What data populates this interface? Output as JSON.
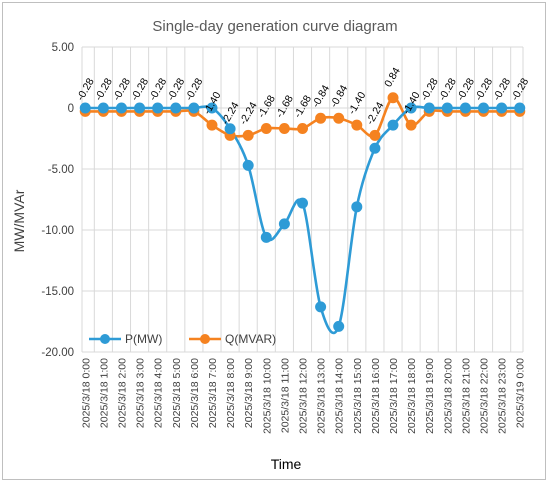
{
  "chart_data": {
    "type": "line",
    "title": "Single-day generation curve diagram",
    "xlabel": "Time",
    "ylabel": "MW/MVAr",
    "ylim": [
      -20,
      5
    ],
    "yticks": [
      "5.00",
      "0",
      "-5.00",
      "-10.00",
      "-15.00",
      "-20.00"
    ],
    "ytick_values": [
      5,
      0,
      -5,
      -10,
      -15,
      -20
    ],
    "grid": true,
    "legend_position": "bottom-left",
    "categories": [
      "2025/3/18 0:00",
      "2025/3/18 1:00",
      "2025/3/18 2:00",
      "2025/3/18 3:00",
      "2025/3/18 4:00",
      "2025/3/18 5:00",
      "2025/3/18 6:00",
      "2025/3/18 7:00",
      "2025/3/18 8:00",
      "2025/3/18 9:00",
      "2025/3/18 10:00",
      "2025/3/18 11:00",
      "2025/3/18 12:00",
      "2025/3/18 13:00",
      "2025/3/18 14:00",
      "2025/3/18 15:00",
      "2025/3/18 16:00",
      "2025/3/18 17:00",
      "2025/3/18 18:00",
      "2025/3/18 19:00",
      "2025/3/18 20:00",
      "2025/3/18 21:00",
      "2025/3/18 22:00",
      "2025/3/18 23:00",
      "2025/3/19 0:00"
    ],
    "series": [
      {
        "name": "P(MW)",
        "color": "#2E9BD6",
        "values": [
          0,
          0,
          0,
          0,
          0,
          0,
          0,
          0,
          -1.7,
          -4.7,
          -10.6,
          -9.5,
          -7.8,
          -16.3,
          -17.9,
          -8.1,
          -3.3,
          -1.4,
          0,
          0,
          0,
          0,
          0,
          0,
          0
        ]
      },
      {
        "name": "Q(MVAR)",
        "color": "#F58220",
        "values": [
          -0.28,
          -0.28,
          -0.28,
          -0.28,
          -0.28,
          -0.28,
          -0.28,
          -1.4,
          -2.24,
          -2.24,
          -1.68,
          -1.68,
          -1.68,
          -0.84,
          -0.84,
          -1.4,
          -2.24,
          0.84,
          -1.4,
          -0.28,
          -0.28,
          -0.28,
          -0.28,
          -0.28,
          -0.28
        ],
        "labels": [
          "-0.28",
          "-0.28",
          "-0.28",
          "-0.28",
          "-0.28",
          "-0.28",
          "-0.28",
          "-1.40",
          "-2.24",
          "-2.24",
          "-1.68",
          "-1.68",
          "-1.68",
          "-0.84",
          "-0.84",
          "-1.40",
          "-2.24",
          "0.84",
          "-1.40",
          "-0.28",
          "-0.28",
          "-0.28",
          "-0.28",
          "-0.28",
          "-0.28"
        ]
      }
    ]
  }
}
